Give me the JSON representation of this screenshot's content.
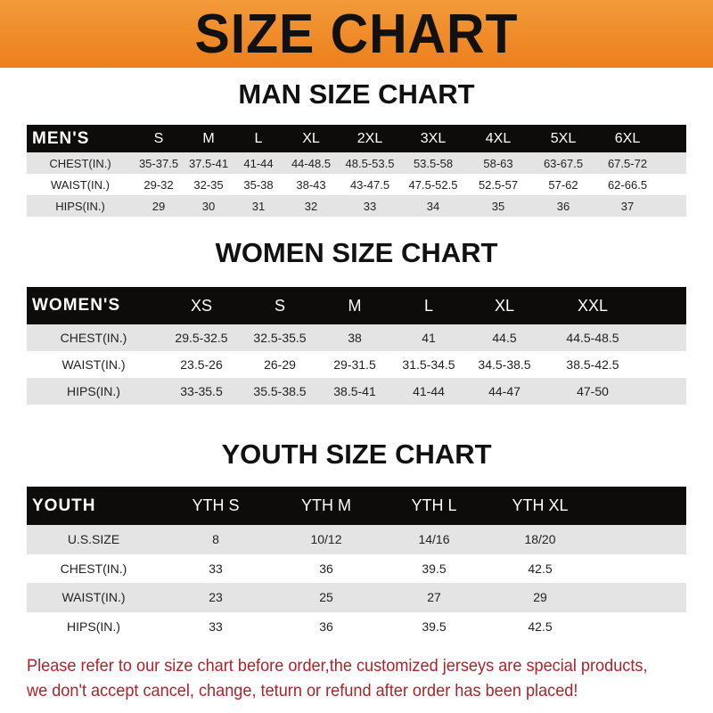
{
  "title": "SIZE CHART",
  "men": {
    "title": "MAN SIZE CHART",
    "header": [
      "MEN'S",
      "S",
      "M",
      "L",
      "XL",
      "2XL",
      "3XL",
      "4XL",
      "5XL",
      "6XL"
    ],
    "rows": [
      [
        "CHEST(IN.)",
        "35-37.5",
        "37.5-41",
        "41-44",
        "44-48.5",
        "48.5-53.5",
        "53.5-58",
        "58-63",
        "63-67.5",
        "67.5-72"
      ],
      [
        "WAIST(IN.)",
        "29-32",
        "32-35",
        "35-38",
        "38-43",
        "43-47.5",
        "47.5-52.5",
        "52.5-57",
        "57-62",
        "62-66.5"
      ],
      [
        "HIPS(IN.)",
        "29",
        "30",
        "31",
        "32",
        "33",
        "34",
        "35",
        "36",
        "37"
      ]
    ]
  },
  "women": {
    "title": "WOMEN SIZE CHART",
    "header": [
      "WOMEN'S",
      "XS",
      "S",
      "M",
      "L",
      "XL",
      "XXL"
    ],
    "rows": [
      [
        "CHEST(IN.)",
        "29.5-32.5",
        "32.5-35.5",
        "38",
        "41",
        "44.5",
        "44.5-48.5"
      ],
      [
        "WAIST(IN.)",
        "23.5-26",
        "26-29",
        "29-31.5",
        "31.5-34.5",
        "34.5-38.5",
        "38.5-42.5"
      ],
      [
        "HIPS(IN.)",
        "33-35.5",
        "35.5-38.5",
        "38.5-41",
        "41-44",
        "44-47",
        "47-50"
      ]
    ]
  },
  "youth": {
    "title": "YOUTH SIZE CHART",
    "header": [
      "YOUTH",
      "YTH S",
      "YTH M",
      "YTH L",
      "YTH XL"
    ],
    "rows": [
      [
        "U.S.SIZE",
        "8",
        "10/12",
        "14/16",
        "18/20"
      ],
      [
        "CHEST(IN.)",
        "33",
        "36",
        "39.5",
        "42.5"
      ],
      [
        "WAIST(IN.)",
        "23",
        "25",
        "27",
        "29"
      ],
      [
        "HIPS(IN.)",
        "33",
        "36",
        "39.5",
        "42.5"
      ]
    ]
  },
  "note_lines": [
    "Please refer to our size chart before order,the customized jerseys are special products,",
    "we don't accept cancel, change, teturn or refund after order has been placed!"
  ],
  "colors": {
    "banner": "#ec7f1c",
    "header_row": "#0e0b0b",
    "stripe": "#e4e4e4",
    "note": "#b0222a"
  }
}
